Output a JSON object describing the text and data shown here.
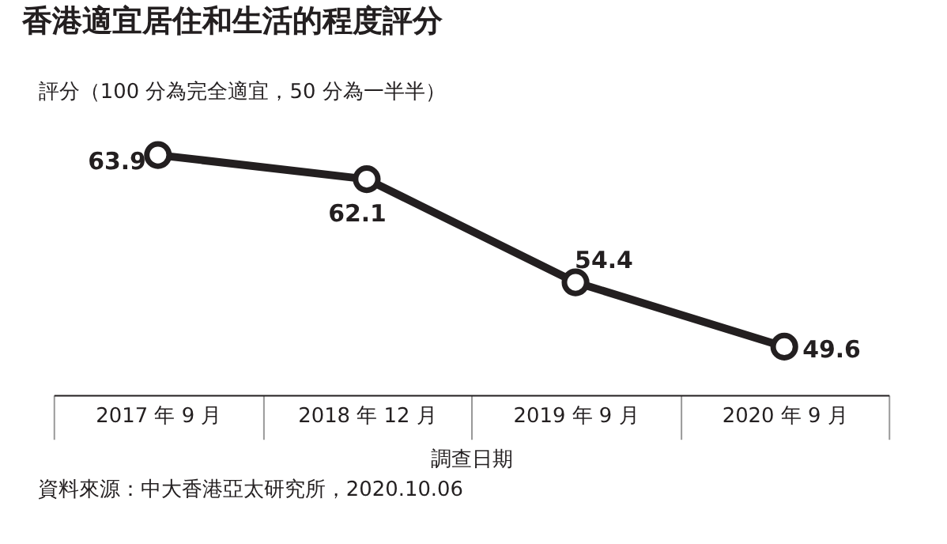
{
  "chart_data": {
    "type": "line",
    "title": "香港適宜居住和生活的程度評分",
    "ylabel": "評分（100 分為完全適宜，50 分為一半半）",
    "xlabel": "調查日期",
    "categories": [
      "2017 年 9 月",
      "2018 年 12 月",
      "2019 年 9 月",
      "2020 年 9 月"
    ],
    "series": [
      {
        "color": "#231f20",
        "values": [
          63.9,
          62.1,
          54.4,
          49.6
        ]
      }
    ],
    "data_labels": true,
    "marker": "circle",
    "line_style": "solid",
    "grid": false,
    "tick_labels": "x",
    "annotations": [
      "資料來源：中大香港亞太研究所，2020.10.06"
    ]
  }
}
